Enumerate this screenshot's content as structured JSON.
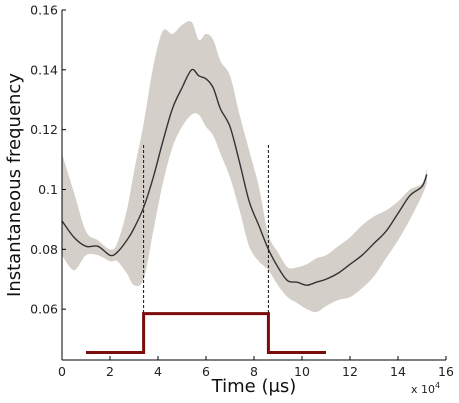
{
  "chart_data": {
    "type": "line",
    "title": "",
    "xlabel": "Time (μs)",
    "ylabel": "Instantaneous frequency",
    "x_multiplier_label": "x 10",
    "x_multiplier_exponent": "4",
    "xlim": [
      0,
      16
    ],
    "ylim": [
      0.043,
      0.16
    ],
    "x_ticks": [
      0,
      2,
      4,
      6,
      8,
      10,
      12,
      14,
      16
    ],
    "y_ticks": [
      0.06,
      0.08,
      0.1,
      0.12,
      0.14,
      0.16
    ],
    "x_tick_labels": [
      "0",
      "2",
      "4",
      "6",
      "8",
      "10",
      "12",
      "14",
      "16"
    ],
    "y_tick_labels": [
      "0.06",
      "0.08",
      "0.1",
      "0.12",
      "0.14",
      "0.16"
    ],
    "grid": false,
    "legend": "none",
    "series": [
      {
        "x": [
          0.0,
          0.5,
          1.0,
          1.5,
          2.0,
          2.3,
          2.7,
          3.0,
          3.4,
          3.8,
          4.2,
          4.6,
          5.0,
          5.4,
          5.7,
          6.0,
          6.3,
          6.6,
          7.0,
          7.4,
          7.8,
          8.2,
          8.6,
          9.0,
          9.4,
          9.8,
          10.2,
          10.6,
          11.0,
          11.5,
          12.0,
          12.5,
          13.0,
          13.5,
          14.0,
          14.5,
          15.0,
          15.2
        ],
        "y": [
          0.0895,
          0.084,
          0.081,
          0.081,
          0.078,
          0.079,
          0.083,
          0.087,
          0.094,
          0.104,
          0.116,
          0.127,
          0.134,
          0.14,
          0.138,
          0.137,
          0.134,
          0.127,
          0.121,
          0.109,
          0.096,
          0.088,
          0.08,
          0.074,
          0.0695,
          0.069,
          0.068,
          0.069,
          0.07,
          0.072,
          0.075,
          0.078,
          0.082,
          0.086,
          0.092,
          0.098,
          0.101,
          0.105
        ],
        "upper": [
          0.112,
          0.099,
          0.086,
          0.083,
          0.08,
          0.082,
          0.093,
          0.106,
          0.122,
          0.141,
          0.153,
          0.152,
          0.155,
          0.156,
          0.15,
          0.152,
          0.15,
          0.143,
          0.138,
          0.125,
          0.113,
          0.101,
          0.085,
          0.079,
          0.074,
          0.074,
          0.075,
          0.077,
          0.078,
          0.081,
          0.084,
          0.088,
          0.091,
          0.093,
          0.096,
          0.1,
          0.102,
          0.107
        ],
        "lower": [
          0.078,
          0.073,
          0.078,
          0.078,
          0.076,
          0.076,
          0.072,
          0.068,
          0.07,
          0.086,
          0.102,
          0.114,
          0.121,
          0.125,
          0.125,
          0.121,
          0.118,
          0.112,
          0.104,
          0.093,
          0.081,
          0.076,
          0.073,
          0.068,
          0.064,
          0.062,
          0.06,
          0.059,
          0.061,
          0.063,
          0.064,
          0.067,
          0.071,
          0.077,
          0.083,
          0.09,
          0.098,
          0.102
        ],
        "color": "#333333",
        "band_color": "#d4d0c9"
      }
    ],
    "stimulus": {
      "x": [
        1.0,
        3.4,
        3.4,
        8.6,
        8.6,
        11.0
      ],
      "y": [
        0.0455,
        0.0455,
        0.0585,
        0.0585,
        0.0455,
        0.0455
      ],
      "color": "#7a0c0c"
    },
    "markers": {
      "x": [
        3.4,
        8.6
      ],
      "color": "#111111"
    }
  }
}
